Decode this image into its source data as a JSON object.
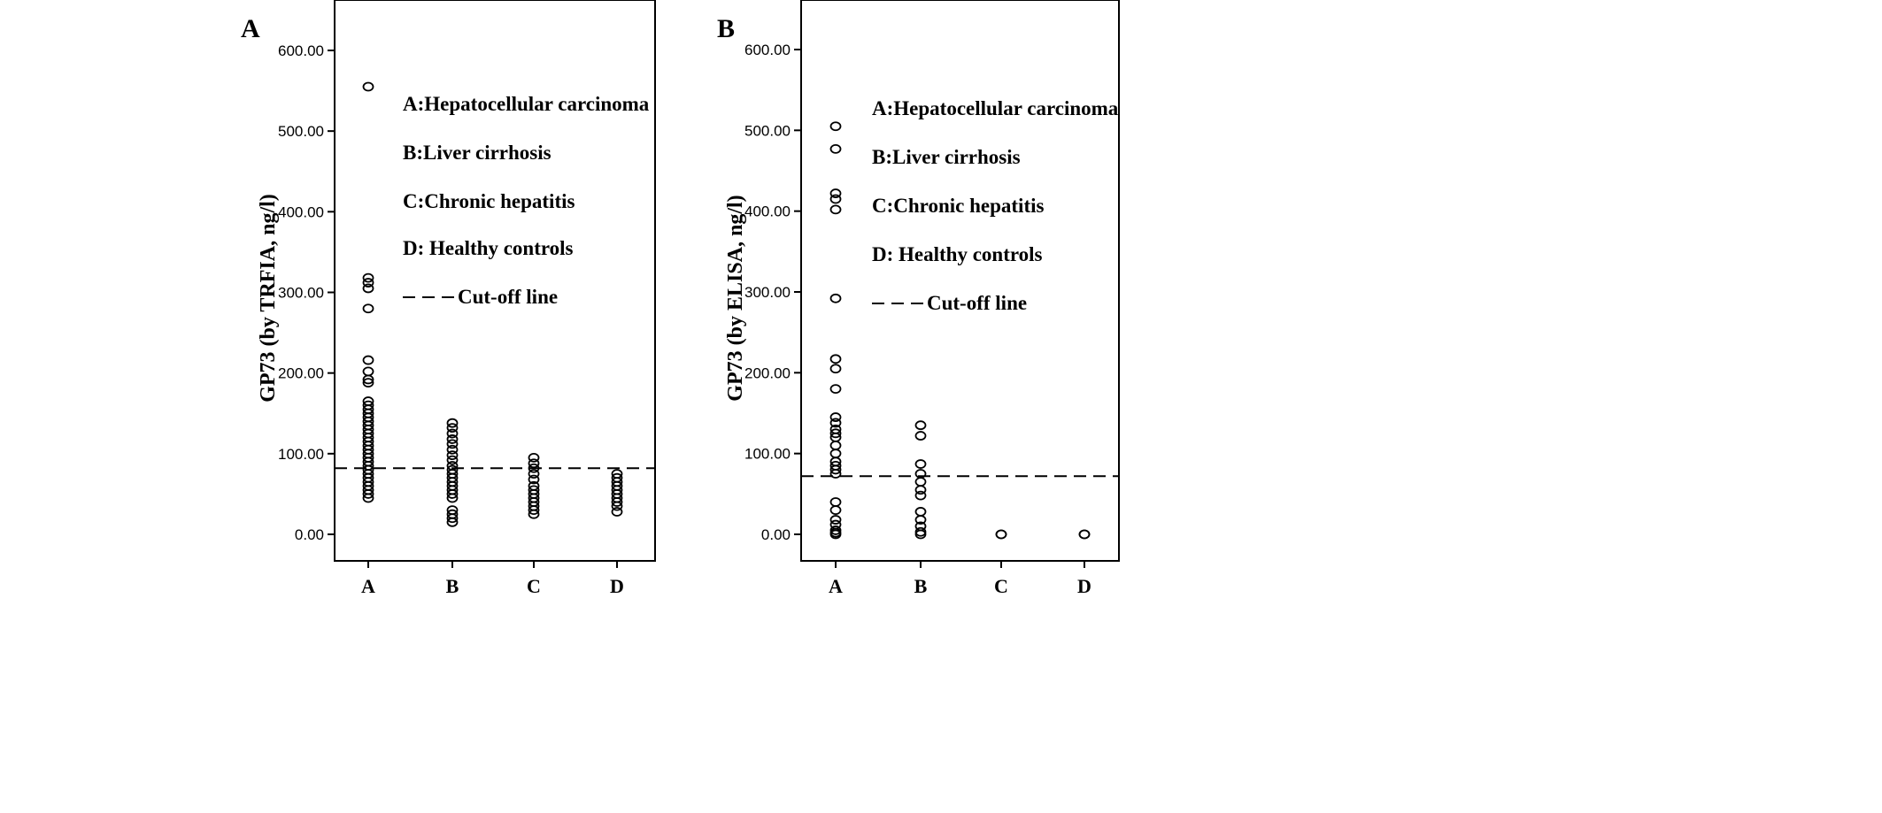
{
  "chart_data": [
    {
      "type": "scatter",
      "panel_label": "A",
      "ylabel": "GP73 (by TRFIA, ng/l)",
      "xlabel": "",
      "categories": [
        "A",
        "B",
        "C",
        "D"
      ],
      "ylim": [
        -35,
        650
      ],
      "yticks": [
        "0.00",
        "100.00",
        "200.00",
        "300.00",
        "400.00",
        "500.00",
        "600.00"
      ],
      "cutoff": 82,
      "legend": [
        "A:Hepatocellular carcinoma",
        "B:Liver cirrhosis",
        "C:Chronic hepatitis",
        "D: Healthy controls",
        "Cut-off line"
      ],
      "series": [
        {
          "name": "A",
          "values": [
            555,
            318,
            312,
            305,
            280,
            216,
            202,
            192,
            188,
            165,
            160,
            155,
            150,
            145,
            140,
            135,
            130,
            125,
            120,
            115,
            110,
            105,
            100,
            95,
            90,
            85,
            80,
            75,
            70,
            65,
            60,
            55,
            50,
            45
          ]
        },
        {
          "name": "B",
          "values": [
            138,
            132,
            125,
            118,
            112,
            105,
            98,
            92,
            85,
            80,
            75,
            70,
            65,
            60,
            55,
            50,
            45,
            30,
            25,
            20,
            15
          ]
        },
        {
          "name": "C",
          "values": [
            95,
            88,
            82,
            75,
            68,
            60,
            55,
            50,
            45,
            40,
            35,
            30,
            25
          ]
        },
        {
          "name": "D",
          "values": [
            75,
            70,
            65,
            60,
            55,
            50,
            45,
            40,
            35,
            28
          ]
        }
      ]
    },
    {
      "type": "scatter",
      "panel_label": "B",
      "ylabel": "GP73 (by ELISA, ng/l)",
      "xlabel": "",
      "categories": [
        "A",
        "B",
        "C",
        "D"
      ],
      "ylim": [
        -35,
        650
      ],
      "yticks": [
        "0.00",
        "100.00",
        "200.00",
        "300.00",
        "400.00",
        "500.00",
        "600.00"
      ],
      "cutoff": 72,
      "legend": [
        "A:Hepatocellular carcinoma",
        "B:Liver cirrhosis",
        "C:Chronic hepatitis",
        "D: Healthy controls",
        "Cut-off line"
      ],
      "series": [
        {
          "name": "A",
          "values": [
            505,
            477,
            422,
            415,
            402,
            292,
            217,
            205,
            180,
            145,
            138,
            130,
            125,
            120,
            110,
            100,
            90,
            85,
            80,
            75,
            40,
            30,
            18,
            12,
            5,
            2,
            0
          ]
        },
        {
          "name": "B",
          "values": [
            135,
            122,
            87,
            75,
            65,
            55,
            48,
            28,
            18,
            10,
            3,
            0
          ]
        },
        {
          "name": "C",
          "values": [
            0,
            0
          ]
        },
        {
          "name": "D",
          "values": [
            0,
            0
          ]
        }
      ]
    }
  ]
}
